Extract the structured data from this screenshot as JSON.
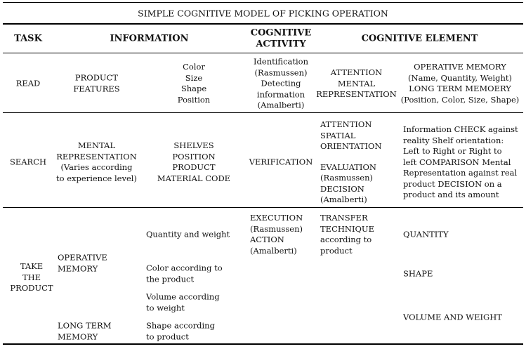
{
  "title": "SIMPLE COGNITIVE MODEL OF PICKING OPERATION",
  "header": {
    "task": "TASK",
    "information": "INFORMATION",
    "activity": [
      "COGNITIVE",
      "ACTIVITY"
    ],
    "element": "COGNITIVE ELEMENT"
  },
  "rows": [
    {
      "task": [
        "READ"
      ],
      "info_a": [
        "PRODUCT",
        "FEATURES"
      ],
      "info_b": [
        "Color",
        "Size",
        "Shape",
        "Position"
      ],
      "activity": [
        "Identification",
        "(Rasmussen)",
        "Detecting",
        "information",
        "(Amalberti)"
      ],
      "element_a": [
        "ATTENTION",
        "MENTAL",
        "REPRESENTATION"
      ],
      "element_b": [
        "OPERATIVE MEMORY",
        "(Name, Quantity, Weight)",
        "LONG TERM MEMOERY",
        "(Position, Color, Size, Shape)"
      ]
    },
    {
      "task": [
        "SEARCH"
      ],
      "info_a": [
        "MENTAL",
        "REPRESENTATION",
        "(Varies according",
        "to experience level)"
      ],
      "info_b": [
        "SHELVES",
        "POSITION",
        "PRODUCT",
        "MATERIAL CODE"
      ],
      "activity": [
        "VERIFICATION"
      ],
      "element_a": [
        [
          "ATTENTION",
          "SPATIAL",
          "ORIENTATION"
        ],
        [
          "EVALUATION",
          "(Rasmussen)",
          "DECISION",
          "(Amalberti)"
        ]
      ],
      "element_b": [
        "Information CHECK against",
        "reality Shelf orientation:",
        "Left to Right or Right to",
        "left COMPARISON Mental",
        "Representation against real",
        "product DECISION on a",
        "product and its amount"
      ]
    },
    {
      "task": [
        "TAKE",
        "THE",
        "PRODUCT"
      ],
      "info_a": [
        [
          "OPERATIVE",
          "MEMORY"
        ],
        [
          "LONG TERM",
          "MEMORY"
        ]
      ],
      "info_b": [
        [
          "Quantity and weight"
        ],
        [
          "Color according to",
          "the product"
        ],
        [
          "Volume according",
          "to weight"
        ],
        [
          "Shape according",
          "to product"
        ]
      ],
      "activity": [
        "EXECUTION",
        "(Rasmussen)",
        "ACTION",
        "(Amalberti)"
      ],
      "element_a": [
        "TRANSFER",
        "TECHNIQUE",
        "according to",
        "product"
      ],
      "element_b": [
        "QUANTITY",
        "SHAPE",
        "VOLUME AND WEIGHT"
      ]
    }
  ]
}
